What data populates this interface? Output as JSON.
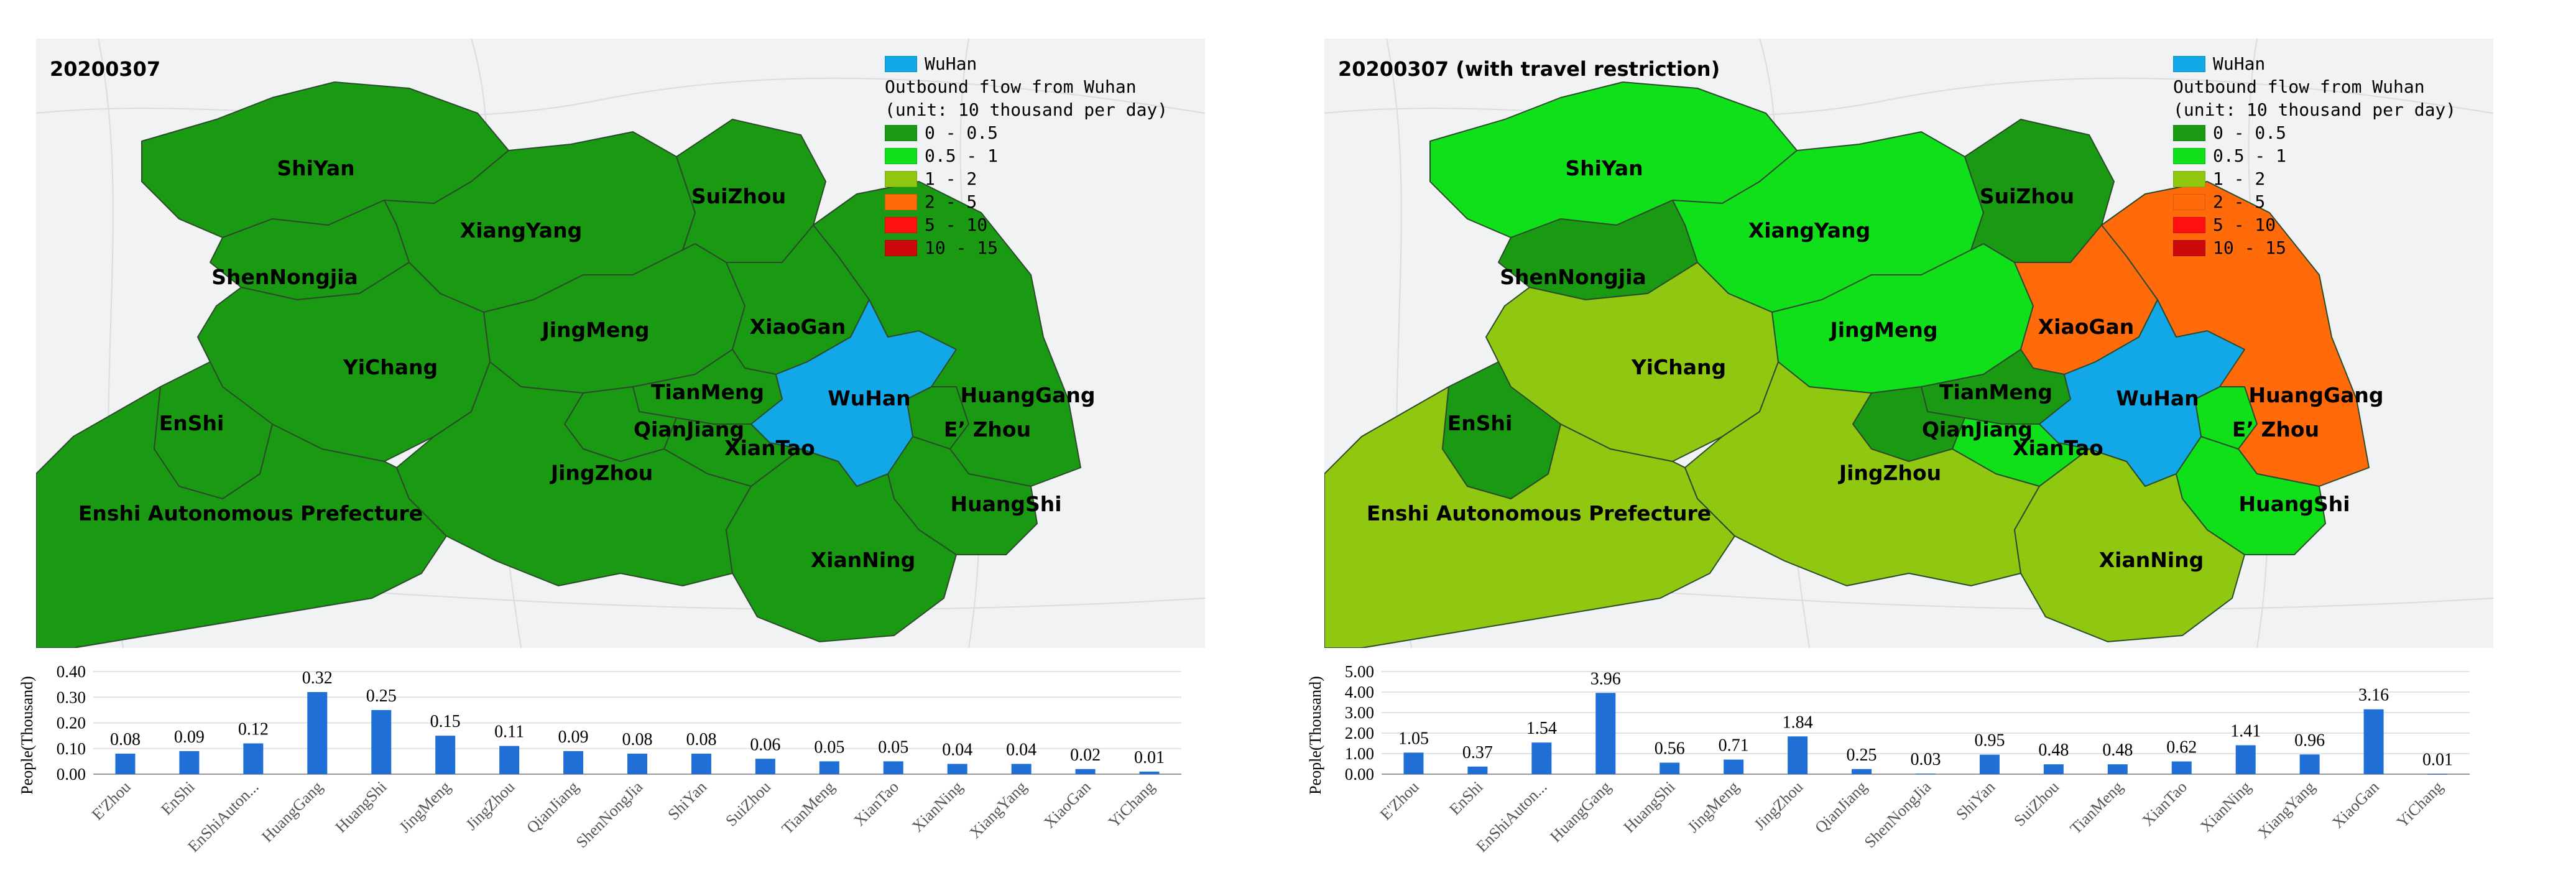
{
  "colors": {
    "wuhan": "#12a8e8",
    "c0": "#1a9a12",
    "c1": "#0fe01a",
    "c2": "#8fc711",
    "c3": "#ff6a0a",
    "c4": "#ff1010",
    "c5": "#cc0a0a",
    "bar": "#1f6fd6"
  },
  "legend": {
    "wuhan_label": "WuHan",
    "title_line1": "Outbound flow from Wuhan",
    "title_line2": "(unit: 10 thousand per day)",
    "classes": [
      "0 - 0.5",
      "0.5 - 1",
      "1 - 2",
      "2 - 5",
      "5 - 10",
      "10 - 15"
    ]
  },
  "panels": [
    {
      "date_label": "20200307",
      "fills": {
        "ShiYan": "c0",
        "XiangYang": "c0",
        "SuiZhou": "c0",
        "ShenNongjia": "c0",
        "YiChang": "c0",
        "JingMeng": "c0",
        "XiaoGan": "c0",
        "HuangGang": "c0",
        "EnShi": "c0",
        "TianMeng": "c0",
        "QianJiang": "c0",
        "XianTao": "c0",
        "JingZhou": "c0",
        "EZhou": "c0",
        "HuangShi": "c0",
        "XianNing": "c0",
        "WuHan": "wuhan"
      },
      "labels": {
        "ShiYan": "ShiYan",
        "XiangYang": "XiangYang",
        "SuiZhou": "SuiZhou",
        "ShenNongjia": "ShenNongjia",
        "YiChang": "YiChang",
        "JingMeng": "JingMeng",
        "XiaoGan": "XiaoGan",
        "HuangGang": "HuangGang",
        "EnShi": "EnShi",
        "TianMeng": "TianMeng",
        "QianJiang": "QianJiang",
        "XianTao": "XianTao",
        "JingZhou": "JingZhou",
        "EZhou": "E’ Zhou",
        "HuangShi": "HuangShi",
        "XianNing": "XianNing",
        "WuHan": "WuHan",
        "Enshi": "Enshi Autonomous Prefecture"
      },
      "chart_data": {
        "type": "bar",
        "ylabel": "People(Thousand)",
        "ylim": [
          0,
          0.4
        ],
        "yticks": [
          "0.00",
          "0.10",
          "0.20",
          "0.30",
          "0.40"
        ],
        "categories": [
          "E'Zhou",
          "EnShi",
          "EnShiAuton...",
          "HuangGang",
          "HuangShi",
          "JingMeng",
          "JingZhou",
          "QianJiang",
          "ShenNongJia",
          "ShiYan",
          "SuiZhou",
          "TianMeng",
          "XianTao",
          "XianNing",
          "XiangYang",
          "XiaoGan",
          "YiChang"
        ],
        "values": [
          0.08,
          0.09,
          0.12,
          0.32,
          0.25,
          0.15,
          0.11,
          0.09,
          0.08,
          0.08,
          0.06,
          0.05,
          0.05,
          0.04,
          0.04,
          0.02,
          0.01
        ],
        "value_labels": [
          "0.08",
          "0.09",
          "0.12",
          "0.32",
          "0.25",
          "0.15",
          "0.11",
          "0.09",
          "0.08",
          "0.08",
          "0.06",
          "0.05",
          "0.05",
          "0.04",
          "0.04",
          "0.02",
          "0.01"
        ]
      }
    },
    {
      "date_label": "20200307   (with travel restriction)",
      "fills": {
        "ShiYan": "c1",
        "XiangYang": "c1",
        "SuiZhou": "c0",
        "ShenNongjia": "c0",
        "YiChang": "c2",
        "JingMeng": "c1",
        "XiaoGan": "c3",
        "HuangGang": "c3",
        "EnShi": "c0",
        "TianMeng": "c0",
        "QianJiang": "c0",
        "XianTao": "c1",
        "JingZhou": "c2",
        "EZhou": "c1",
        "HuangShi": "c1",
        "XianNing": "c2",
        "WuHan": "wuhan"
      },
      "labels": {
        "ShiYan": "ShiYan",
        "XiangYang": "XiangYang",
        "SuiZhou": "SuiZhou",
        "ShenNongjia": "ShenNongjia",
        "YiChang": "YiChang",
        "JingMeng": "JingMeng",
        "XiaoGan": "XiaoGan",
        "HuangGang": "HuangGang",
        "EnShi": "EnShi",
        "TianMeng": "TianMeng",
        "QianJiang": "QianJiang",
        "XianTao": "XianTao",
        "JingZhou": "JingZhou",
        "EZhou": "E’ Zhou",
        "HuangShi": "HuangShi",
        "XianNing": "XianNing",
        "WuHan": "WuHan",
        "Enshi": "Enshi Autonomous Prefecture"
      },
      "chart_data": {
        "type": "bar",
        "ylabel": "People(Thousand)",
        "ylim": [
          0,
          5
        ],
        "yticks": [
          "0.00",
          "1.00",
          "2.00",
          "3.00",
          "4.00",
          "5.00"
        ],
        "categories": [
          "E'Zhou",
          "EnShi",
          "EnShiAuton...",
          "HuangGang",
          "HuangShi",
          "JingMeng",
          "JingZhou",
          "QianJiang",
          "ShenNongJia",
          "ShiYan",
          "SuiZhou",
          "TianMeng",
          "XianTao",
          "XianNing",
          "XiangYang",
          "XiaoGan",
          "YiChang"
        ],
        "values": [
          1.05,
          0.37,
          1.54,
          3.96,
          0.56,
          0.71,
          1.84,
          0.25,
          0.03,
          0.95,
          0.48,
          0.48,
          0.62,
          1.41,
          0.96,
          3.16,
          0.01
        ],
        "value_labels": [
          "1.05",
          "0.37",
          "1.54",
          "3.96",
          "0.56",
          "0.71",
          "1.84",
          "0.25",
          "0.03",
          "0.95",
          "0.48",
          "0.48",
          "0.62",
          "1.41",
          "0.96",
          "3.16",
          "0.01"
        ]
      }
    }
  ]
}
